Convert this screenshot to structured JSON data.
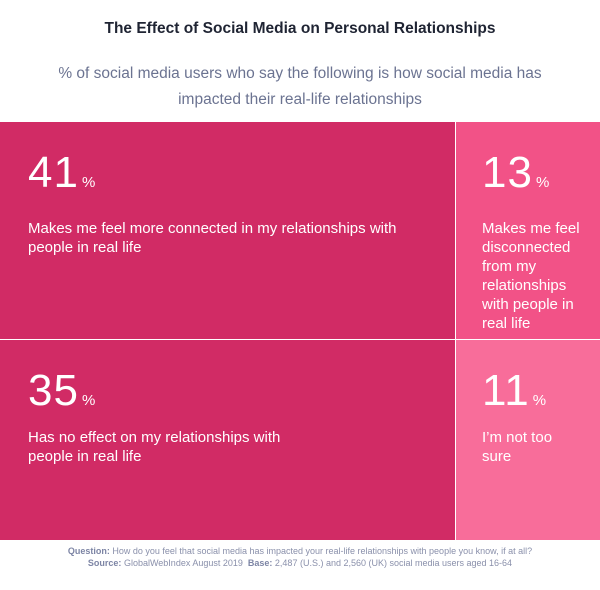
{
  "title": "The Effect of Social Media on Personal Relationships",
  "subtitle": "% of social media users who say the following is how social media has impacted their real-life relationships",
  "chart_data": {
    "type": "treemap",
    "unit": "%",
    "items": [
      {
        "value": 41,
        "label": "Makes me feel more connected in my relationships with people in real life",
        "color": "#d12b65"
      },
      {
        "value": 13,
        "label": "Makes me feel disconnected from my relationships with people in real life",
        "color": "#f25287"
      },
      {
        "value": 35,
        "label": "Has no effect on my relationships with people in real life",
        "color": "#d12b65"
      },
      {
        "value": 11,
        "label": "I’m not too sure",
        "color": "#f86d9a"
      }
    ]
  },
  "footer": {
    "question_label": "Question:",
    "question_text": "How do you feel that social media has impacted your real-life relationships with people you know, if at all?",
    "source_label": "Source:",
    "source_text": "GlobalWebIndex August 2019",
    "base_label": "Base:",
    "base_text": "2,487 (U.S.) and 2,560 (UK) social media users aged 16-64"
  }
}
